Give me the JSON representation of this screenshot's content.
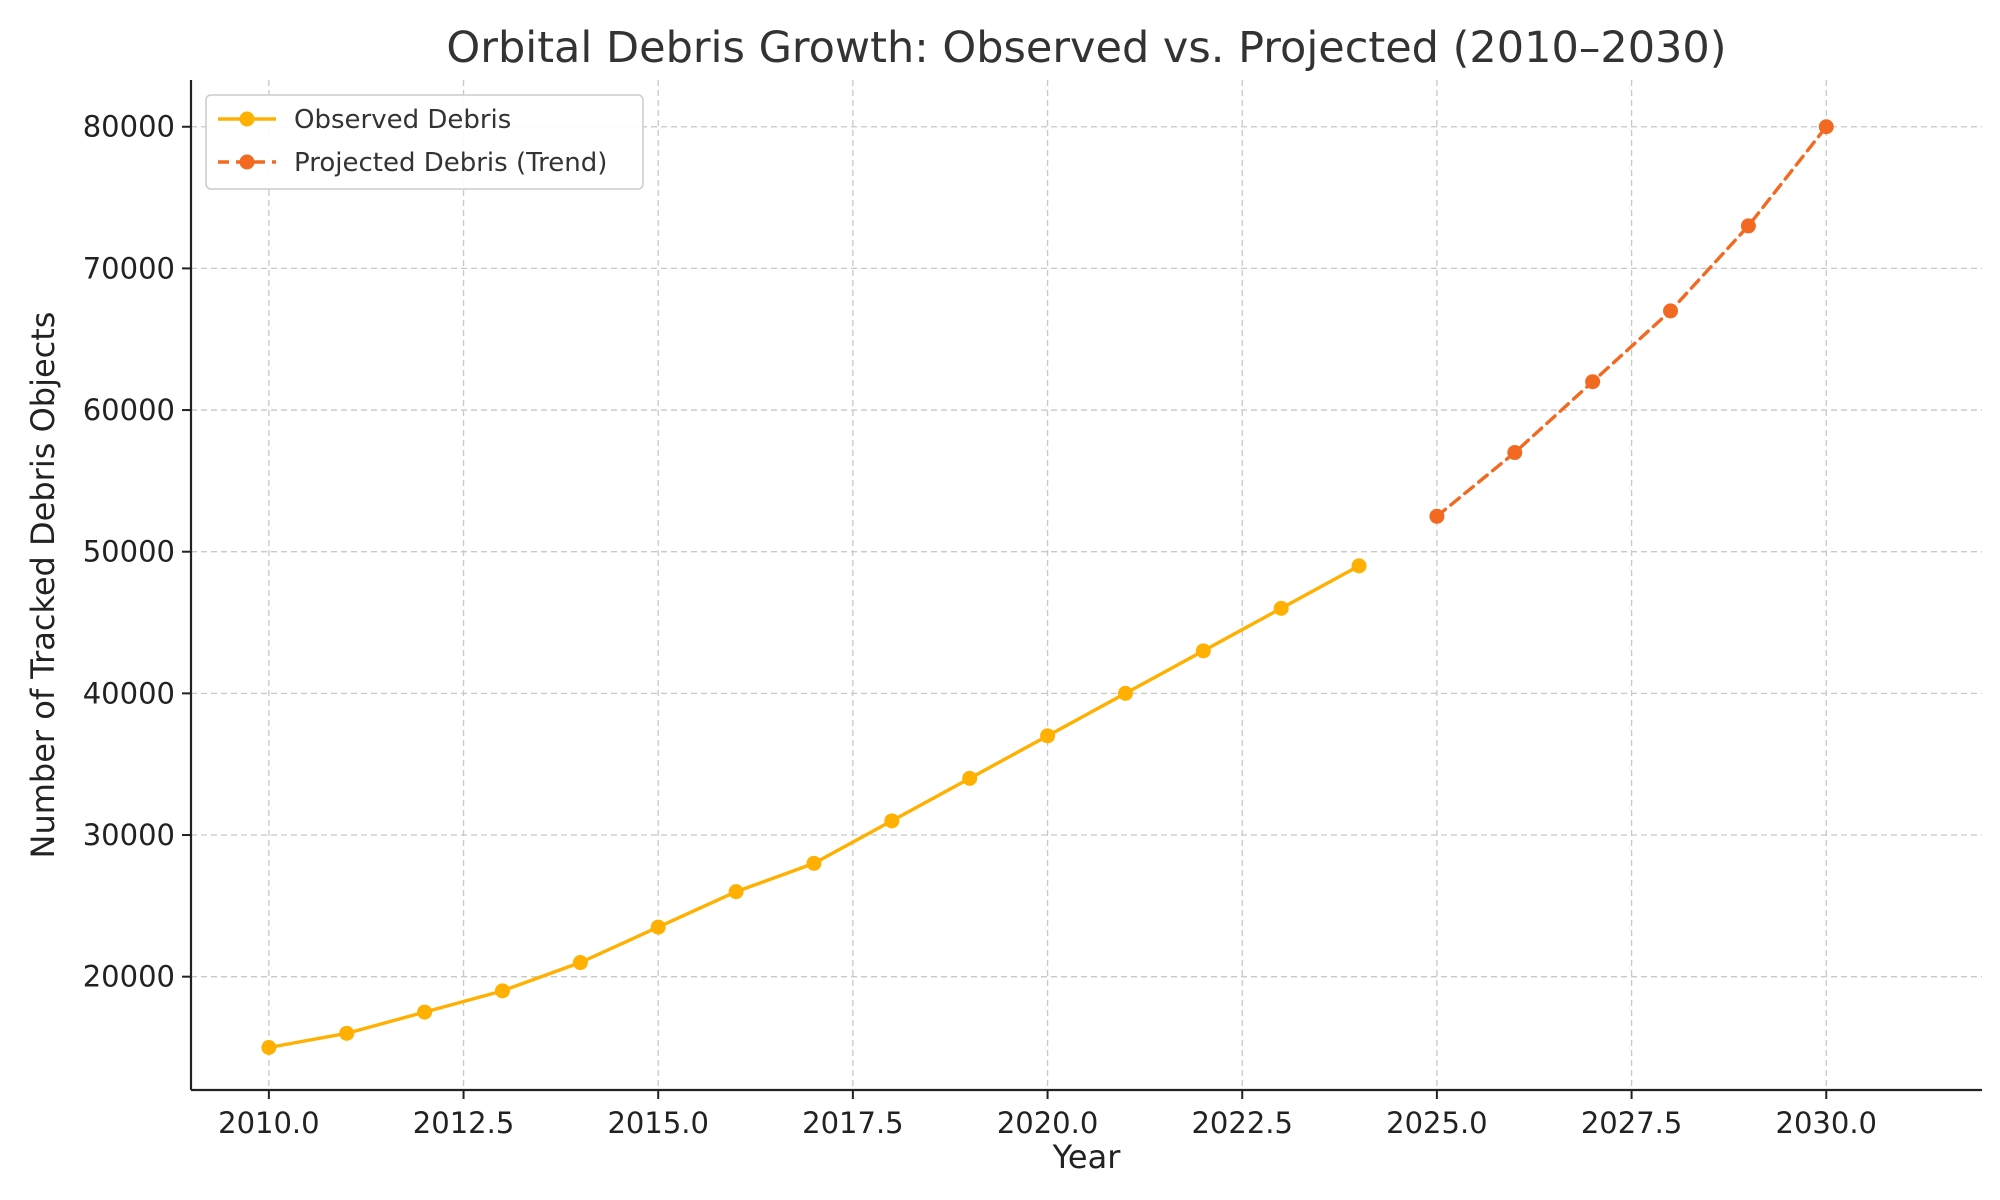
{
  "chart_data": {
    "type": "line",
    "title": "Orbital Debris Growth: Observed vs. Projected (2010–2030)",
    "xlabel": "Year",
    "ylabel": "Number of Tracked Debris Objects",
    "xlim": [
      2009,
      2032
    ],
    "ylim": [
      12000,
      83300
    ],
    "x_ticks": [
      2010.0,
      2012.5,
      2015.0,
      2017.5,
      2020.0,
      2022.5,
      2025.0,
      2027.5,
      2030.0
    ],
    "x_tick_labels": [
      "2010.0",
      "2012.5",
      "2015.0",
      "2017.5",
      "2020.0",
      "2022.5",
      "2025.0",
      "2027.5",
      "2030.0"
    ],
    "y_ticks": [
      20000,
      30000,
      40000,
      50000,
      60000,
      70000,
      80000
    ],
    "y_tick_labels": [
      "20000",
      "30000",
      "40000",
      "50000",
      "60000",
      "70000",
      "80000"
    ],
    "grid": true,
    "legend_position": "top-left",
    "series": [
      {
        "name": "Observed Debris",
        "color": "#FFB000",
        "line_style": "solid",
        "marker": "circle",
        "x": [
          2010,
          2011,
          2012,
          2013,
          2014,
          2015,
          2016,
          2017,
          2018,
          2019,
          2020,
          2021,
          2022,
          2023,
          2024
        ],
        "y": [
          15000,
          16000,
          17500,
          19000,
          21000,
          23500,
          26000,
          28000,
          31000,
          34000,
          37000,
          40000,
          43000,
          46000,
          49000
        ]
      },
      {
        "name": "Projected Debris (Trend)",
        "color": "#F26A21",
        "line_style": "dashed",
        "marker": "circle",
        "x": [
          2025,
          2026,
          2027,
          2028,
          2029,
          2030
        ],
        "y": [
          52500,
          57000,
          62000,
          67000,
          73000,
          80000
        ]
      }
    ]
  }
}
